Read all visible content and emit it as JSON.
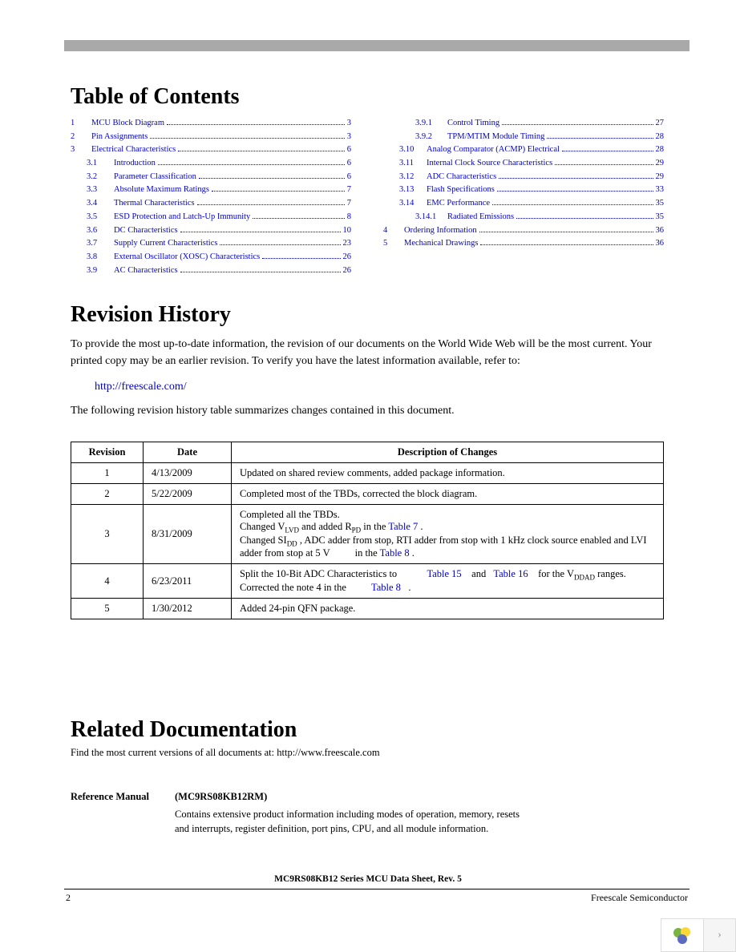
{
  "toc_heading": "Table of Contents",
  "toc_left": [
    {
      "n": "1",
      "t": "MCU Block Diagram",
      "p": "3",
      "lvl": 0
    },
    {
      "n": "2",
      "t": "Pin Assignments",
      "p": "3",
      "lvl": 0
    },
    {
      "n": "3",
      "t": "Electrical Characteristics",
      "p": "6",
      "lvl": 0
    },
    {
      "n": "3.1",
      "t": "Introduction",
      "p": "6",
      "lvl": 1
    },
    {
      "n": "3.2",
      "t": "Parameter Classification",
      "p": "6",
      "lvl": 1
    },
    {
      "n": "3.3",
      "t": "Absolute Maximum Ratings",
      "p": "7",
      "lvl": 1
    },
    {
      "n": "3.4",
      "t": "Thermal Characteristics",
      "p": "7",
      "lvl": 1
    },
    {
      "n": "3.5",
      "t": "ESD Protection and Latch-Up Immunity",
      "p": "8",
      "lvl": 1
    },
    {
      "n": "3.6",
      "t": "DC Characteristics",
      "p": "10",
      "lvl": 1
    },
    {
      "n": "3.7",
      "t": "Supply Current Characteristics",
      "p": "23",
      "lvl": 1
    },
    {
      "n": "3.8",
      "t": "External Oscillator (XOSC) Characteristics",
      "p": "26",
      "lvl": 1
    },
    {
      "n": "3.9",
      "t": "AC Characteristics",
      "p": "26",
      "lvl": 1
    }
  ],
  "toc_right": [
    {
      "n": "3.9.1",
      "t": "Control Timing",
      "p": "27",
      "lvl": 2
    },
    {
      "n": "3.9.2",
      "t": "TPM/MTIM Module Timing",
      "p": "28",
      "lvl": 2
    },
    {
      "n": "3.10",
      "t": "Analog Comparator (ACMP) Electrical",
      "p": "28",
      "lvl": 1
    },
    {
      "n": "3.11",
      "t": "Internal Clock Source Characteristics",
      "p": "29",
      "lvl": 1
    },
    {
      "n": "3.12",
      "t": "ADC Characteristics",
      "p": "29",
      "lvl": 1
    },
    {
      "n": "3.13",
      "t": "Flash Specifications",
      "p": "33",
      "lvl": 1
    },
    {
      "n": "3.14",
      "t": "EMC Performance",
      "p": "35",
      "lvl": 1
    },
    {
      "n": "3.14.1",
      "t": "Radiated Emissions",
      "p": "35",
      "lvl": 2
    },
    {
      "n": "4",
      "t": "Ordering Information",
      "p": "36",
      "lvl": 0
    },
    {
      "n": "5",
      "t": "Mechanical Drawings",
      "p": "36",
      "lvl": 0
    }
  ],
  "rev_heading": "Revision History",
  "rev_intro": "To provide the most up-to-date information, the revision of our documents on the World Wide Web will be the most current. Your printed copy may be an earlier revision. To verify you have the latest information available, refer to:",
  "rev_link": "http://freescale.com/",
  "rev_after": "The following revision history table summarizes changes contained in this document.",
  "rev_headers": [
    "Revision",
    "Date",
    "Description of Changes"
  ],
  "rev_rows": [
    {
      "r": "1",
      "d": "4/13/2009",
      "desc_html": "Updated on shared review comments, added package information."
    },
    {
      "r": "2",
      "d": "5/22/2009",
      "desc_html": "Completed most of the TBDs, corrected the block diagram."
    },
    {
      "r": "3",
      "d": "8/31/2009",
      "desc_html": "Completed all the TBDs.<br>Changed V<span class='sub'>LVD</span> and added R<span class='sub'>PD</span> in the <span class='tlink'>Table 7</span> .<br>Changed SI<span class='sub'>DD</span> , ADC adder from stop, RTI adder from stop with 1 kHz clock source enabled and LVI adder from stop at 5 V &nbsp;&nbsp;&nbsp;&nbsp;&nbsp;&nbsp;&nbsp;&nbsp; in the <span class='tlink'>Table 8</span> ."
    },
    {
      "r": "4",
      "d": "6/23/2011",
      "desc_html": "Split the 10-Bit ADC Characteristics to &nbsp;&nbsp;&nbsp;&nbsp;&nbsp;&nbsp;&nbsp;&nbsp;&nbsp;&nbsp; <span class='tlink'>Table 15</span> &nbsp;&nbsp; and &nbsp; <span class='tlink'>Table 16</span> &nbsp;&nbsp; for the V<span class='sub'>DDAD</span> ranges.<br>Corrected the note 4 in the &nbsp;&nbsp;&nbsp;&nbsp;&nbsp;&nbsp;&nbsp;&nbsp; <span class='tlink'>Table 8</span> &nbsp; ."
    },
    {
      "r": "5",
      "d": "1/30/2012",
      "desc_html": "Added 24-pin QFN package."
    }
  ],
  "related_heading": "Related Documentation",
  "related_intro": "Find the most current versions of all documents at: http://www.freescale.com",
  "ref_label": "Reference Manual",
  "ref_title": "(MC9RS08KB12RM)",
  "ref_desc": "Contains extensive product information including modes of operation, memory, resets and interrupts, register definition, port pins, CPU, and all module information.",
  "footer_title": "MC9RS08KB12 Series MCU Data Sheet, Rev. 5",
  "footer_page": "2",
  "footer_company": "Freescale Semiconductor",
  "widget_arrow": "›"
}
